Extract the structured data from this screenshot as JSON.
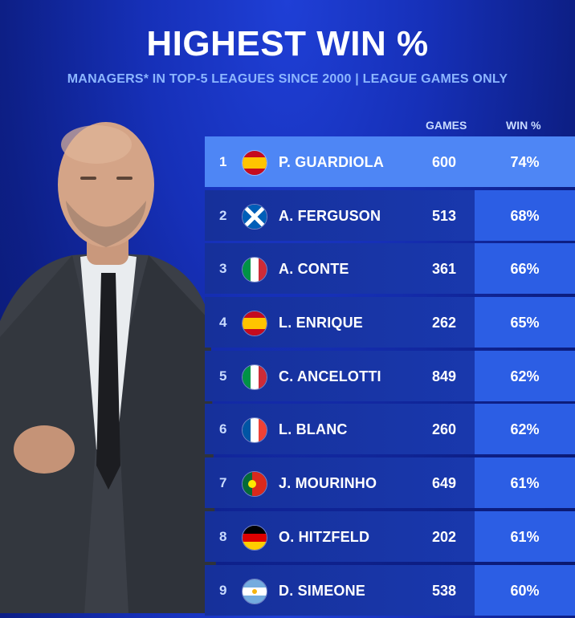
{
  "title": "HIGHEST WIN %",
  "subtitle": "MANAGERS* IN TOP-5 LEAGUES SINCE 2000 | LEAGUE GAMES ONLY",
  "columns": {
    "games": "GAMES",
    "win": "WIN %"
  },
  "rows": [
    {
      "rank": "1",
      "flag": "spain-flag-icon",
      "name": "P. GUARDIOLA",
      "games": "600",
      "win": "74%"
    },
    {
      "rank": "2",
      "flag": "scotland-flag-icon",
      "name": "A. FERGUSON",
      "games": "513",
      "win": "68%"
    },
    {
      "rank": "3",
      "flag": "italy-flag-icon",
      "name": "A. CONTE",
      "games": "361",
      "win": "66%"
    },
    {
      "rank": "4",
      "flag": "spain-flag-icon",
      "name": "L. ENRIQUE",
      "games": "262",
      "win": "65%"
    },
    {
      "rank": "5",
      "flag": "italy-flag-icon",
      "name": "C. ANCELOTTI",
      "games": "849",
      "win": "62%"
    },
    {
      "rank": "6",
      "flag": "france-flag-icon",
      "name": "L. BLANC",
      "games": "260",
      "win": "62%"
    },
    {
      "rank": "7",
      "flag": "portugal-flag-icon",
      "name": "J. MOURINHO",
      "games": "649",
      "win": "61%"
    },
    {
      "rank": "8",
      "flag": "germany-flag-icon",
      "name": "O. HITZFELD",
      "games": "202",
      "win": "61%"
    },
    {
      "rank": "9",
      "flag": "argentina-flag-icon",
      "name": "D. SIMEONE",
      "games": "538",
      "win": "60%"
    }
  ],
  "colors": {
    "background": "#1630b8",
    "highlight_row": "#4e86f5",
    "win_column": "#2c5ee4",
    "subtitle": "#8cb6ff"
  }
}
